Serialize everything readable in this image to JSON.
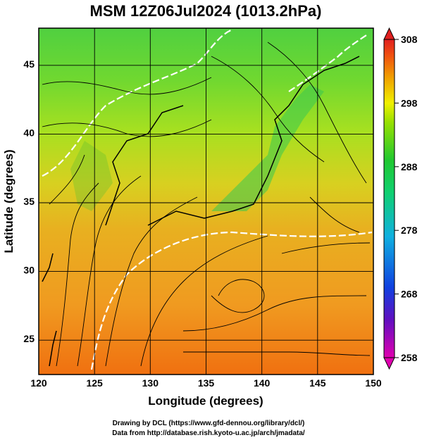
{
  "chart_data": {
    "type": "heatmap",
    "title": "MSM 12Z06Jul2024 (1013.2hPa)",
    "xlabel": "Longitude (degrees)",
    "ylabel": "Latitude  (degrees)",
    "xlim": [
      120,
      150
    ],
    "ylim": [
      22.4,
      47.6
    ],
    "xticks": [
      120,
      125,
      130,
      135,
      140,
      145,
      150
    ],
    "yticks": [
      25,
      30,
      35,
      40,
      45
    ],
    "grid": true,
    "colorbar": {
      "min": 258,
      "max": 308,
      "ticks": [
        258,
        268,
        278,
        288,
        298,
        308
      ],
      "colors": [
        "#e000b0",
        "#6010c0",
        "#1040e0",
        "#10b0e0",
        "#10d0a0",
        "#20c830",
        "#98e000",
        "#f0f000",
        "#f0a000",
        "#f05010",
        "#e02020"
      ]
    },
    "annotations": []
  },
  "credits": {
    "line1": "Drawing by DCL (https://www.gfd-dennou.org/library/dcl/)",
    "line2": "Data from http://database.rish.kyoto-u.ac.jp/arch/jmadata/"
  }
}
